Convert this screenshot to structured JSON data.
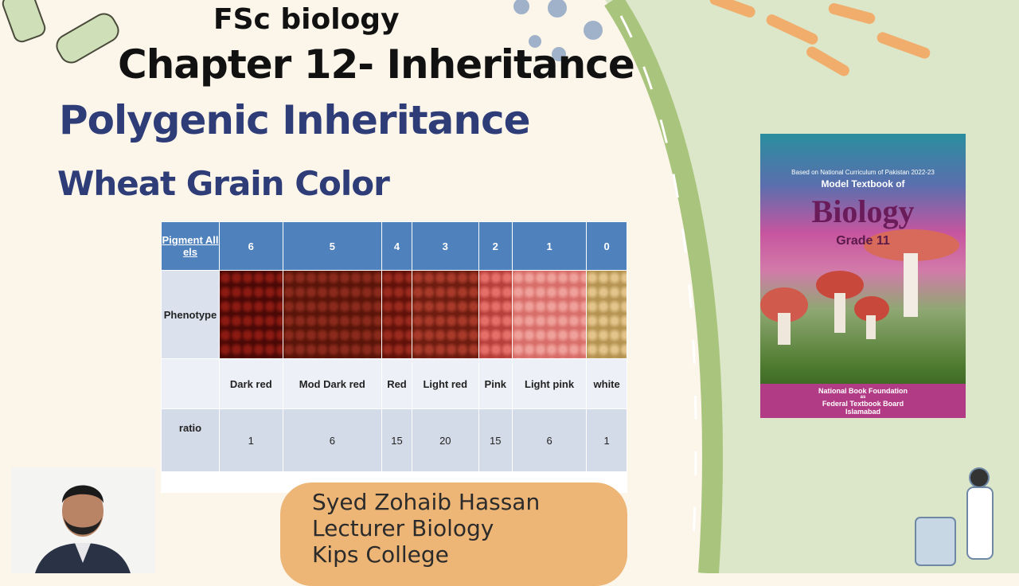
{
  "header": {
    "course": "FSc biology",
    "chapter": "Chapter 12- Inheritance",
    "topic": "Polygenic Inheritance",
    "subtopic": "Wheat Grain Color"
  },
  "table": {
    "header_label": "Pigment Allels",
    "alleles": [
      "6",
      "5",
      "4",
      "3",
      "2",
      "1",
      "0"
    ],
    "phenotype_label": "Phenotype",
    "colors": [
      "Dark red",
      "Mod Dark red",
      "Red",
      "Light red",
      "Pink",
      "Light pink",
      "white"
    ],
    "ratio_label": "ratio",
    "ratios": [
      "1",
      "6",
      "15",
      "20",
      "15",
      "6",
      "1"
    ]
  },
  "book": {
    "top_line": "Based on National Curriculum of Pakistan 2022-23",
    "series": "Model Textbook of",
    "subject": "Biology",
    "grade": "Grade 11",
    "publisher": "National Book Foundation",
    "as": "as",
    "board": "Federal Textbook Board",
    "city": "Islamabad"
  },
  "presenter": {
    "name": "Syed Zohaib Hassan",
    "role": "Lecturer Biology",
    "institution": "Kips College"
  }
}
